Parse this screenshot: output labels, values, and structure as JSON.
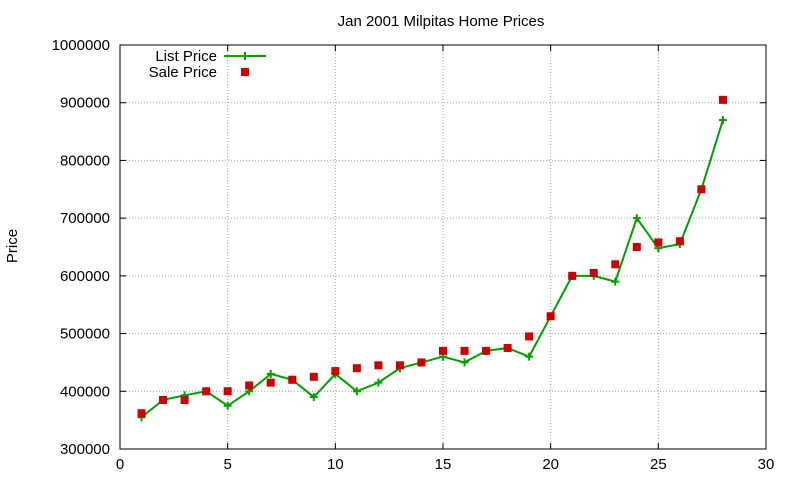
{
  "chart_data": {
    "type": "line",
    "title": "Jan 2001 Milpitas Home Prices",
    "xlabel": "",
    "ylabel": "Price",
    "xlim": [
      0,
      30
    ],
    "ylim": [
      300000,
      1000000
    ],
    "xticks": [
      0,
      5,
      10,
      15,
      20,
      25,
      30
    ],
    "yticks": [
      300000,
      400000,
      500000,
      600000,
      700000,
      800000,
      900000,
      1000000
    ],
    "grid": true,
    "legend_position": "top-left",
    "series": [
      {
        "name": "List Price",
        "style": "line-points",
        "color": "#00a000",
        "marker": "plus",
        "x": [
          1,
          2,
          3,
          4,
          5,
          6,
          7,
          8,
          9,
          10,
          11,
          12,
          13,
          14,
          15,
          16,
          17,
          18,
          19,
          20,
          21,
          22,
          23,
          24,
          25,
          26,
          27,
          28
        ],
        "y": [
          355000,
          385000,
          393000,
          400000,
          375000,
          400000,
          430000,
          420000,
          390000,
          430000,
          400000,
          415000,
          440000,
          450000,
          460000,
          450000,
          470000,
          475000,
          460000,
          530000,
          600000,
          600000,
          590000,
          700000,
          648000,
          655000,
          750000,
          870000
        ]
      },
      {
        "name": "Sale Price",
        "style": "points",
        "color": "#cc0000",
        "marker": "square",
        "x": [
          1,
          2,
          3,
          4,
          5,
          6,
          7,
          8,
          9,
          10,
          11,
          12,
          13,
          14,
          15,
          16,
          17,
          18,
          19,
          20,
          21,
          22,
          23,
          24,
          25,
          26,
          27,
          28
        ],
        "y": [
          362000,
          385000,
          385000,
          400000,
          400000,
          410000,
          415000,
          420000,
          425000,
          435000,
          440000,
          445000,
          445000,
          450000,
          470000,
          470000,
          470000,
          475000,
          495000,
          530000,
          600000,
          605000,
          620000,
          650000,
          658000,
          660000,
          750000,
          905000
        ]
      }
    ]
  }
}
